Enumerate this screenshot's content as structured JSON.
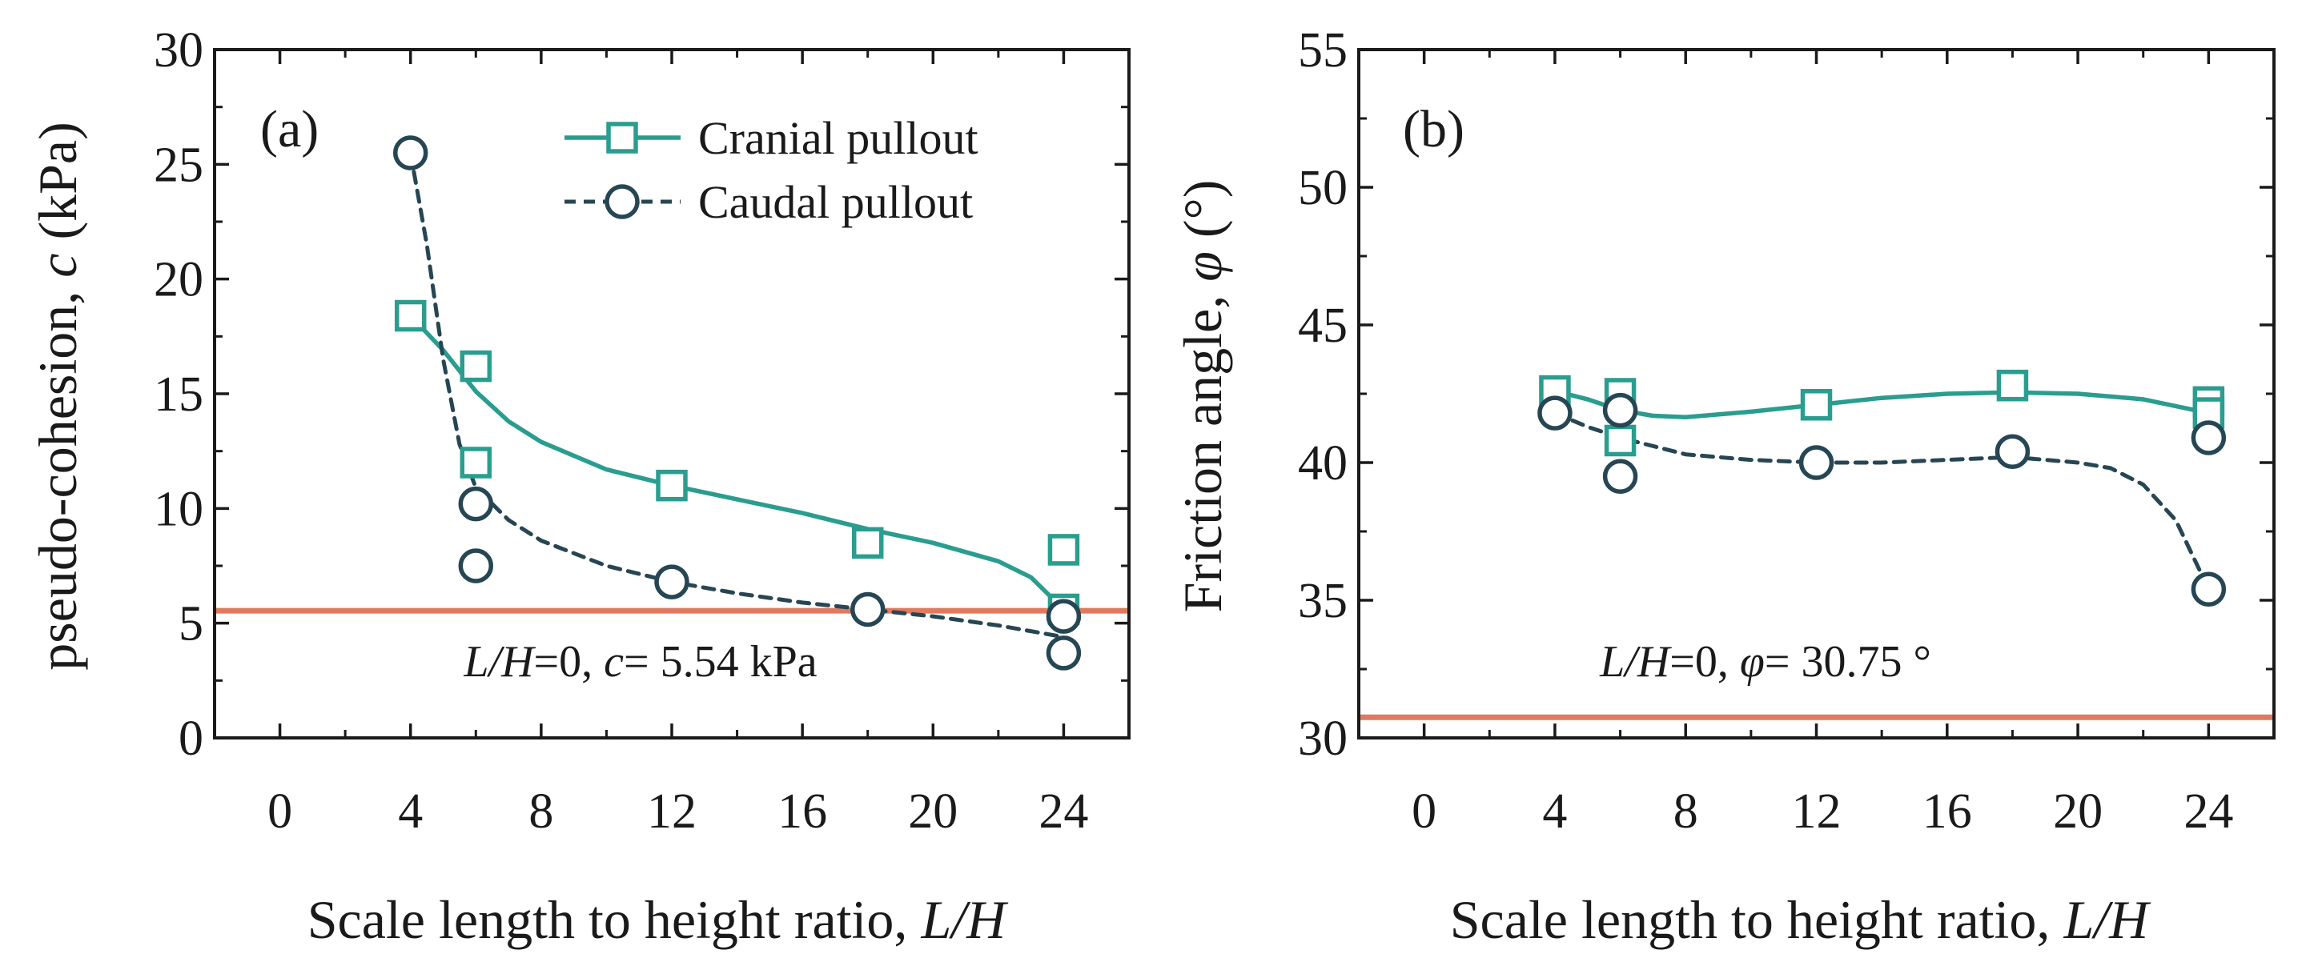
{
  "chart_data": [
    {
      "type": "line",
      "panel_label": "(a)",
      "xlabel": {
        "text": "Scale length to height ratio, ",
        "var": "L/H"
      },
      "ylabel": {
        "text": "pseudo-cohesion, ",
        "var": "c",
        "unit": " (kPa)"
      },
      "xlim": [
        -2,
        26
      ],
      "ylim": [
        0,
        30
      ],
      "xticks": [
        0,
        4,
        8,
        12,
        16,
        20,
        24
      ],
      "yticks": [
        0,
        5,
        10,
        15,
        20,
        25,
        30
      ],
      "xtick_labels": [
        "0",
        "4",
        "8",
        "12",
        "16",
        "20",
        "24"
      ],
      "ytick_labels": [
        "0",
        "5",
        "10",
        "15",
        "20",
        "25",
        "30"
      ],
      "legend": {
        "placement": "top-right",
        "entries": [
          "Cranial pullout",
          "Caudal pullout"
        ]
      },
      "series": [
        {
          "name": "Cranial pullout",
          "marker": "square",
          "linestyle": "solid",
          "color": "#2a9d8f",
          "points": [
            [
              4,
              18.4
            ],
            [
              6,
              16.2
            ],
            [
              6,
              12.0
            ],
            [
              12,
              11.0
            ],
            [
              18,
              8.5
            ],
            [
              24,
              8.2
            ],
            [
              24,
              5.6
            ]
          ],
          "curve": [
            [
              4,
              18.4
            ],
            [
              5,
              16.9
            ],
            [
              6,
              15.1
            ],
            [
              7,
              13.8
            ],
            [
              8,
              12.9
            ],
            [
              10,
              11.7
            ],
            [
              12,
              11.0
            ],
            [
              14,
              10.4
            ],
            [
              16,
              9.8
            ],
            [
              18,
              9.1
            ],
            [
              20,
              8.5
            ],
            [
              22,
              7.7
            ],
            [
              23,
              7.0
            ],
            [
              24,
              5.6
            ]
          ]
        },
        {
          "name": "Caudal pullout",
          "marker": "circle",
          "linestyle": "dashed",
          "color": "#264653",
          "points": [
            [
              4,
              25.5
            ],
            [
              6,
              10.2
            ],
            [
              6,
              7.5
            ],
            [
              12,
              6.8
            ],
            [
              18,
              5.6
            ],
            [
              24,
              5.3
            ],
            [
              24,
              3.7
            ]
          ],
          "curve": [
            [
              4,
              25.5
            ],
            [
              4.5,
              21.5
            ],
            [
              5,
              16.5
            ],
            [
              5.5,
              12.8
            ],
            [
              6,
              10.9
            ],
            [
              7,
              9.5
            ],
            [
              8,
              8.6
            ],
            [
              10,
              7.5
            ],
            [
              12,
              6.8
            ],
            [
              14,
              6.3
            ],
            [
              16,
              5.9
            ],
            [
              18,
              5.6
            ],
            [
              20,
              5.3
            ],
            [
              22,
              4.9
            ],
            [
              24,
              4.4
            ]
          ]
        }
      ],
      "reference_line": {
        "y": 5.54,
        "color": "#e07a5f",
        "label": {
          "var": "L/H",
          "eq": "=0, ",
          "sym": "c",
          "value": "= 5.54 kPa"
        }
      }
    },
    {
      "type": "line",
      "panel_label": "(b)",
      "xlabel": {
        "text": "Scale length to height ratio, ",
        "var": "L/H"
      },
      "ylabel": {
        "text": "Friction angle, ",
        "var": "φ",
        "unit": " (°)"
      },
      "xlim": [
        -2,
        26
      ],
      "ylim": [
        30,
        55
      ],
      "xticks": [
        0,
        4,
        8,
        12,
        16,
        20,
        24
      ],
      "yticks": [
        30,
        35,
        40,
        45,
        50,
        55
      ],
      "xtick_labels": [
        "0",
        "4",
        "8",
        "12",
        "16",
        "20",
        "24"
      ],
      "ytick_labels": [
        "30",
        "35",
        "40",
        "45",
        "50",
        "55"
      ],
      "series": [
        {
          "name": "Cranial pullout",
          "marker": "square",
          "linestyle": "solid",
          "color": "#2a9d8f",
          "points": [
            [
              4,
              42.6
            ],
            [
              6,
              42.5
            ],
            [
              6,
              40.8
            ],
            [
              12,
              42.1
            ],
            [
              18,
              42.8
            ],
            [
              24,
              42.2
            ],
            [
              24,
              41.8
            ]
          ],
          "curve": [
            [
              4,
              42.6
            ],
            [
              5,
              42.3
            ],
            [
              6,
              41.9
            ],
            [
              7,
              41.7
            ],
            [
              8,
              41.65
            ],
            [
              10,
              41.85
            ],
            [
              12,
              42.1
            ],
            [
              14,
              42.35
            ],
            [
              16,
              42.5
            ],
            [
              18,
              42.55
            ],
            [
              20,
              42.5
            ],
            [
              22,
              42.3
            ],
            [
              24,
              41.8
            ]
          ]
        },
        {
          "name": "Caudal pullout",
          "marker": "circle",
          "linestyle": "dashed",
          "color": "#264653",
          "points": [
            [
              4,
              41.8
            ],
            [
              6,
              41.9
            ],
            [
              6,
              39.5
            ],
            [
              12,
              40.0
            ],
            [
              18,
              40.4
            ],
            [
              24,
              40.9
            ],
            [
              24,
              35.4
            ]
          ],
          "curve": [
            [
              4,
              41.8
            ],
            [
              5,
              41.3
            ],
            [
              6,
              40.9
            ],
            [
              8,
              40.3
            ],
            [
              10,
              40.1
            ],
            [
              12,
              40.0
            ],
            [
              14,
              40.0
            ],
            [
              16,
              40.1
            ],
            [
              18,
              40.2
            ],
            [
              20,
              40.0
            ],
            [
              21,
              39.8
            ],
            [
              22,
              39.2
            ],
            [
              23,
              37.9
            ],
            [
              24,
              35.4
            ]
          ]
        }
      ],
      "reference_line": {
        "y": 30.75,
        "color": "#e07a5f",
        "label": {
          "var": "L/H",
          "eq": "=0, ",
          "sym": "φ",
          "value": "= 30.75 °"
        }
      }
    }
  ]
}
